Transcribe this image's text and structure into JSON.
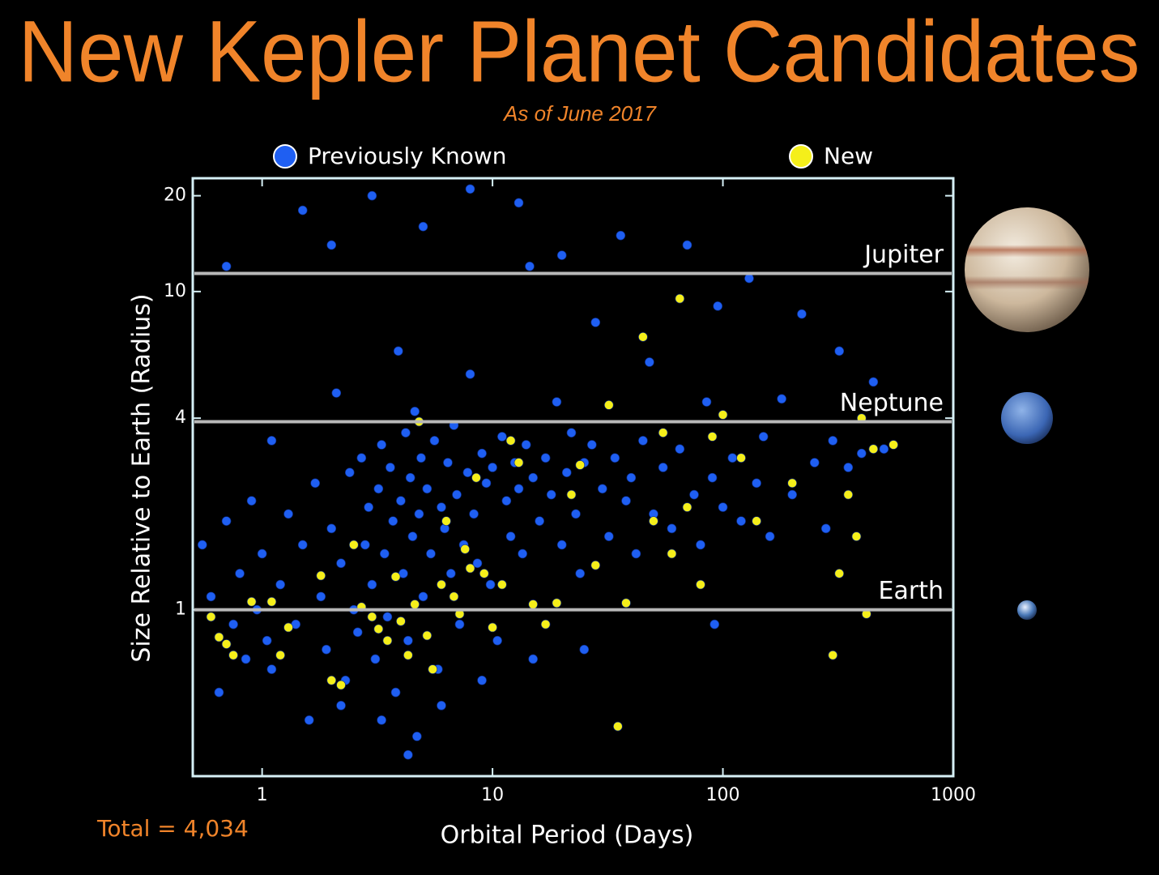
{
  "chart_data": {
    "type": "scatter",
    "title": "New Kepler Planet Candidates",
    "subtitle": "As of June 2017",
    "x_label": "Orbital Period (Days)",
    "y_label": "Size Relative to Earth (Radius)",
    "total_label": "Total = 4,034",
    "x_log": true,
    "y_log": true,
    "xlim": [
      0.5,
      1000
    ],
    "ylim": [
      0.3,
      22.7
    ],
    "xticks": [
      1,
      10,
      100,
      1000
    ],
    "yticks": [
      1,
      4,
      10,
      20
    ],
    "reference_lines": [
      {
        "label": "Jupiter",
        "value": 11.4
      },
      {
        "label": "Neptune",
        "value": 3.9
      },
      {
        "label": "Earth",
        "value": 1
      }
    ],
    "series": [
      {
        "name": "Previously Known",
        "color": "#1f5ff2",
        "x": [
          0.55,
          0.6,
          0.65,
          0.7,
          0.75,
          0.8,
          0.85,
          0.9,
          0.95,
          1.0,
          1.05,
          1.1,
          1.2,
          1.3,
          1.4,
          1.5,
          1.6,
          1.7,
          1.8,
          1.9,
          2.0,
          2.1,
          2.2,
          2.3,
          2.4,
          2.5,
          2.6,
          2.7,
          2.8,
          2.9,
          3.0,
          3.1,
          3.2,
          3.3,
          3.4,
          3.5,
          3.6,
          3.7,
          3.8,
          3.9,
          4.0,
          4.1,
          4.2,
          4.3,
          4.4,
          4.5,
          4.6,
          4.7,
          4.8,
          4.9,
          5.0,
          5.2,
          5.4,
          5.6,
          5.8,
          6.0,
          6.2,
          6.4,
          6.6,
          6.8,
          7.0,
          7.2,
          7.5,
          7.8,
          8.0,
          8.3,
          8.6,
          9.0,
          9.4,
          9.8,
          10,
          10.5,
          11,
          11.5,
          12,
          12.5,
          13,
          13.5,
          14,
          14.5,
          15,
          16,
          17,
          18,
          19,
          20,
          21,
          22,
          23,
          24,
          25,
          27,
          28,
          30,
          32,
          34,
          36,
          38,
          40,
          42,
          45,
          48,
          50,
          55,
          60,
          65,
          70,
          75,
          80,
          85,
          90,
          95,
          100,
          110,
          120,
          130,
          140,
          150,
          160,
          180,
          200,
          220,
          250,
          280,
          300,
          320,
          350,
          400,
          450,
          500,
          1.5,
          2.0,
          3.0,
          5.0,
          8.0,
          13,
          20,
          0.7,
          1.1,
          2.2,
          3.3,
          6.0,
          9.0,
          15,
          25,
          4.3,
          92
        ],
        "values": [
          1.6,
          1.1,
          0.55,
          1.9,
          0.9,
          1.3,
          0.7,
          2.2,
          1.0,
          1.5,
          0.8,
          3.4,
          1.2,
          2.0,
          0.9,
          1.6,
          0.45,
          2.5,
          1.1,
          0.75,
          1.8,
          4.8,
          1.4,
          0.6,
          2.7,
          1.0,
          0.85,
          3.0,
          1.6,
          2.1,
          1.2,
          0.7,
          2.4,
          3.3,
          1.5,
          0.95,
          2.8,
          1.9,
          0.55,
          6.5,
          2.2,
          1.3,
          3.6,
          0.8,
          2.6,
          1.7,
          4.2,
          0.4,
          2.0,
          3.0,
          1.1,
          2.4,
          1.5,
          3.4,
          0.65,
          2.1,
          1.8,
          2.9,
          1.3,
          3.8,
          2.3,
          0.9,
          1.6,
          2.7,
          5.5,
          2.0,
          1.4,
          3.1,
          2.5,
          1.2,
          2.8,
          0.8,
          3.5,
          2.2,
          1.7,
          2.9,
          2.4,
          1.5,
          3.3,
          12,
          2.6,
          1.9,
          3.0,
          2.3,
          4.5,
          1.6,
          2.7,
          3.6,
          2.0,
          1.3,
          2.9,
          3.3,
          8,
          2.4,
          1.7,
          3.0,
          15,
          2.2,
          2.6,
          1.5,
          3.4,
          6,
          2.0,
          2.8,
          1.8,
          3.2,
          14,
          2.3,
          1.6,
          4.5,
          2.6,
          9,
          2.1,
          3.0,
          1.9,
          11,
          2.5,
          3.5,
          1.7,
          4.6,
          2.3,
          8.5,
          2.9,
          1.8,
          3.4,
          6.5,
          2.8,
          3.1,
          5.2,
          3.2,
          18,
          14,
          20,
          16,
          21,
          19,
          13,
          12,
          0.65,
          0.5,
          0.45,
          0.5,
          0.6,
          0.7,
          0.75,
          0.35,
          0.9
        ]
      },
      {
        "name": "New",
        "color": "#f5ef1a",
        "x": [
          0.6,
          0.65,
          0.7,
          0.75,
          0.9,
          1.1,
          1.2,
          1.3,
          1.8,
          2.0,
          2.2,
          2.5,
          2.7,
          3.0,
          3.2,
          3.5,
          3.8,
          4.0,
          4.3,
          4.6,
          4.8,
          5.2,
          5.5,
          6.0,
          6.3,
          6.8,
          7.2,
          7.6,
          8.0,
          8.5,
          9.2,
          10,
          11,
          12,
          13,
          15,
          17,
          19,
          22,
          24,
          28,
          32,
          35,
          38,
          45,
          50,
          55,
          60,
          65,
          70,
          80,
          90,
          100,
          120,
          140,
          200,
          300,
          320,
          350,
          400,
          420,
          450,
          550,
          380
        ],
        "values": [
          0.95,
          0.82,
          0.78,
          0.72,
          1.06,
          1.06,
          0.72,
          0.88,
          1.28,
          0.6,
          0.58,
          1.6,
          1.02,
          0.95,
          0.87,
          0.8,
          1.27,
          0.92,
          0.72,
          1.04,
          3.9,
          0.83,
          0.65,
          1.2,
          1.9,
          1.1,
          0.97,
          1.55,
          1.35,
          2.6,
          1.3,
          0.88,
          1.2,
          3.4,
          2.9,
          1.04,
          0.9,
          1.05,
          2.3,
          2.85,
          1.38,
          4.4,
          0.43,
          1.05,
          7.2,
          1.9,
          3.6,
          1.5,
          9.5,
          2.1,
          1.2,
          3.5,
          4.1,
          3.0,
          1.9,
          2.5,
          0.72,
          1.3,
          2.3,
          4.0,
          0.97,
          3.2,
          3.3,
          1.7
        ]
      }
    ]
  }
}
